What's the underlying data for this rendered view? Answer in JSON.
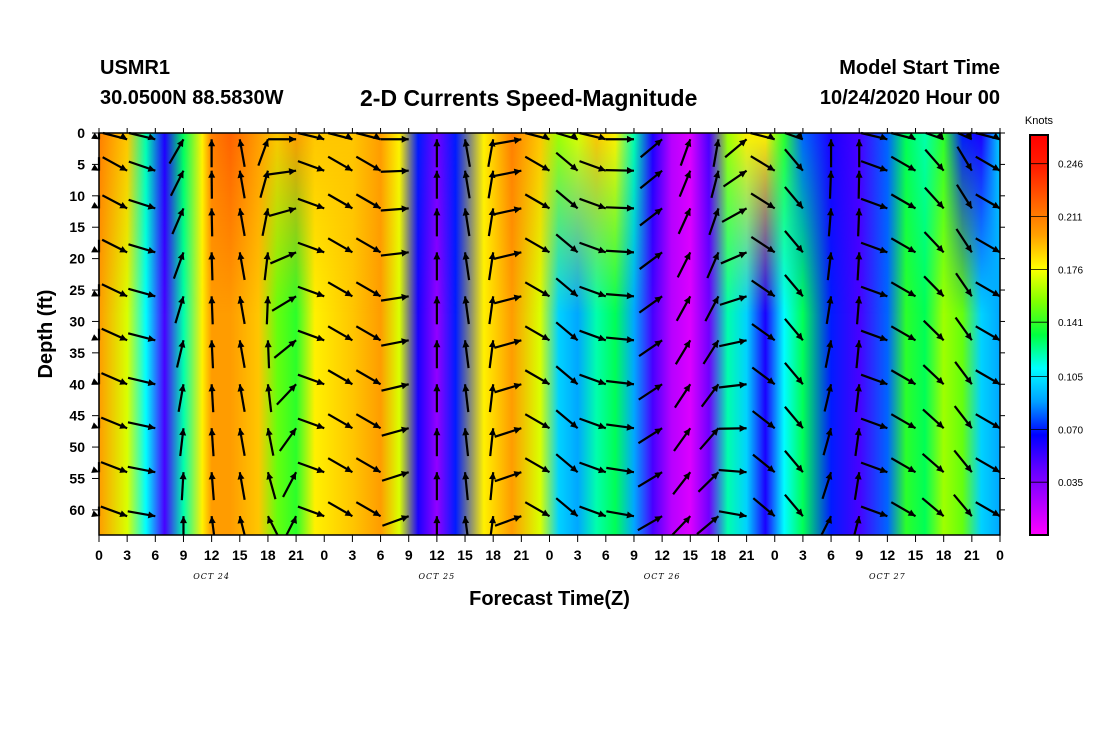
{
  "header": {
    "station_id": "USMR1",
    "coordinates": "30.0500N 88.5830W",
    "title": "2-D Currents Speed-Magnitude",
    "start_label": "Model Start Time",
    "start_time": "10/24/2020 Hour 00"
  },
  "colorbar": {
    "unit": "Knots",
    "ticks": [
      "0.246",
      "0.211",
      "0.176",
      "0.141",
      "0.105",
      "0.070",
      "0.035"
    ],
    "tick_values": [
      0.246,
      0.211,
      0.176,
      0.141,
      0.105,
      0.07,
      0.035
    ],
    "range": [
      0.0,
      0.265
    ],
    "colors": [
      "#ff00ff",
      "#b000ff",
      "#6000ff",
      "#0000ff",
      "#00a0ff",
      "#00ffff",
      "#00ff40",
      "#80ff00",
      "#ffff00",
      "#ffa000",
      "#ff6000",
      "#ff2000",
      "#ff0000"
    ]
  },
  "chart_data": {
    "type": "heatmap",
    "title": "2-D Currents Speed-Magnitude",
    "xlabel": "Forecast Time(Z)",
    "ylabel": "Depth (ft)",
    "x_tick_labels": [
      "0",
      "3",
      "6",
      "9",
      "12",
      "15",
      "18",
      "21",
      "0",
      "3",
      "6",
      "9",
      "12",
      "15",
      "18",
      "21",
      "0",
      "3",
      "6",
      "9",
      "12",
      "15",
      "18",
      "21",
      "0",
      "3",
      "6",
      "9",
      "12",
      "15",
      "18",
      "21",
      "0"
    ],
    "day_labels": [
      "OCT 24",
      "OCT 25",
      "OCT 26",
      "OCT 27"
    ],
    "y_tick_labels": [
      "0",
      "5",
      "10",
      "15",
      "20",
      "25",
      "30",
      "35",
      "40",
      "45",
      "50",
      "55",
      "60"
    ],
    "xlim_hours": [
      0,
      96
    ],
    "ylim_ft": [
      0,
      64
    ],
    "y_inverted": true,
    "speed_profile_hours": [
      0,
      3,
      5,
      7,
      9,
      11,
      12,
      14,
      17,
      19,
      21,
      23,
      27,
      30,
      32,
      34,
      36,
      38,
      41,
      44,
      47,
      49,
      51,
      53,
      55,
      57,
      59,
      61,
      63,
      65,
      67,
      69,
      71,
      73,
      75,
      78,
      81,
      84,
      86,
      88,
      90,
      92,
      94,
      96
    ],
    "speed_profile_knots": [
      0.2,
      0.17,
      0.11,
      0.05,
      0.12,
      0.18,
      0.2,
      0.2,
      0.19,
      0.15,
      0.14,
      0.18,
      0.19,
      0.2,
      0.17,
      0.06,
      0.03,
      0.07,
      0.18,
      0.2,
      0.17,
      0.1,
      0.09,
      0.12,
      0.13,
      0.09,
      0.05,
      0.02,
      0.01,
      0.04,
      0.12,
      0.1,
      0.06,
      0.11,
      0.13,
      0.07,
      0.05,
      0.08,
      0.14,
      0.13,
      0.16,
      0.15,
      0.1,
      0.09
    ],
    "speed_surface_knots": [
      0.21,
      0.19,
      0.12,
      0.06,
      0.13,
      0.18,
      0.21,
      0.22,
      0.2,
      0.19,
      0.2,
      0.19,
      0.19,
      0.2,
      0.18,
      0.07,
      0.04,
      0.07,
      0.18,
      0.21,
      0.19,
      0.16,
      0.17,
      0.19,
      0.18,
      0.12,
      0.06,
      0.02,
      0.01,
      0.05,
      0.16,
      0.18,
      0.18,
      0.14,
      0.08,
      0.06,
      0.05,
      0.08,
      0.13,
      0.12,
      0.14,
      0.07,
      0.06,
      0.1
    ],
    "vector_hours": [
      0,
      3,
      6,
      9,
      12,
      15,
      18,
      21,
      24,
      27,
      30,
      33,
      36,
      39,
      42,
      45,
      48,
      51,
      54,
      57,
      60,
      63,
      66,
      69,
      72,
      75,
      78,
      81,
      84,
      87,
      90,
      93,
      96
    ],
    "vector_depths_ft": [
      1,
      6,
      12,
      19,
      26,
      33,
      40,
      47,
      54,
      61
    ],
    "vector_direction_deg_surface": [
      300,
      300,
      290,
      210,
      180,
      170,
      200,
      270,
      290,
      300,
      300,
      270,
      180,
      170,
      190,
      260,
      300,
      310,
      290,
      270,
      230,
      200,
      190,
      230,
      300,
      320,
      180,
      180,
      290,
      300,
      320,
      330,
      300
    ],
    "vector_direction_deg_deep": [
      290,
      290,
      280,
      180,
      175,
      170,
      160,
      200,
      290,
      300,
      300,
      250,
      180,
      175,
      185,
      250,
      300,
      310,
      290,
      280,
      240,
      220,
      230,
      280,
      310,
      320,
      200,
      190,
      290,
      300,
      310,
      320,
      300
    ]
  }
}
